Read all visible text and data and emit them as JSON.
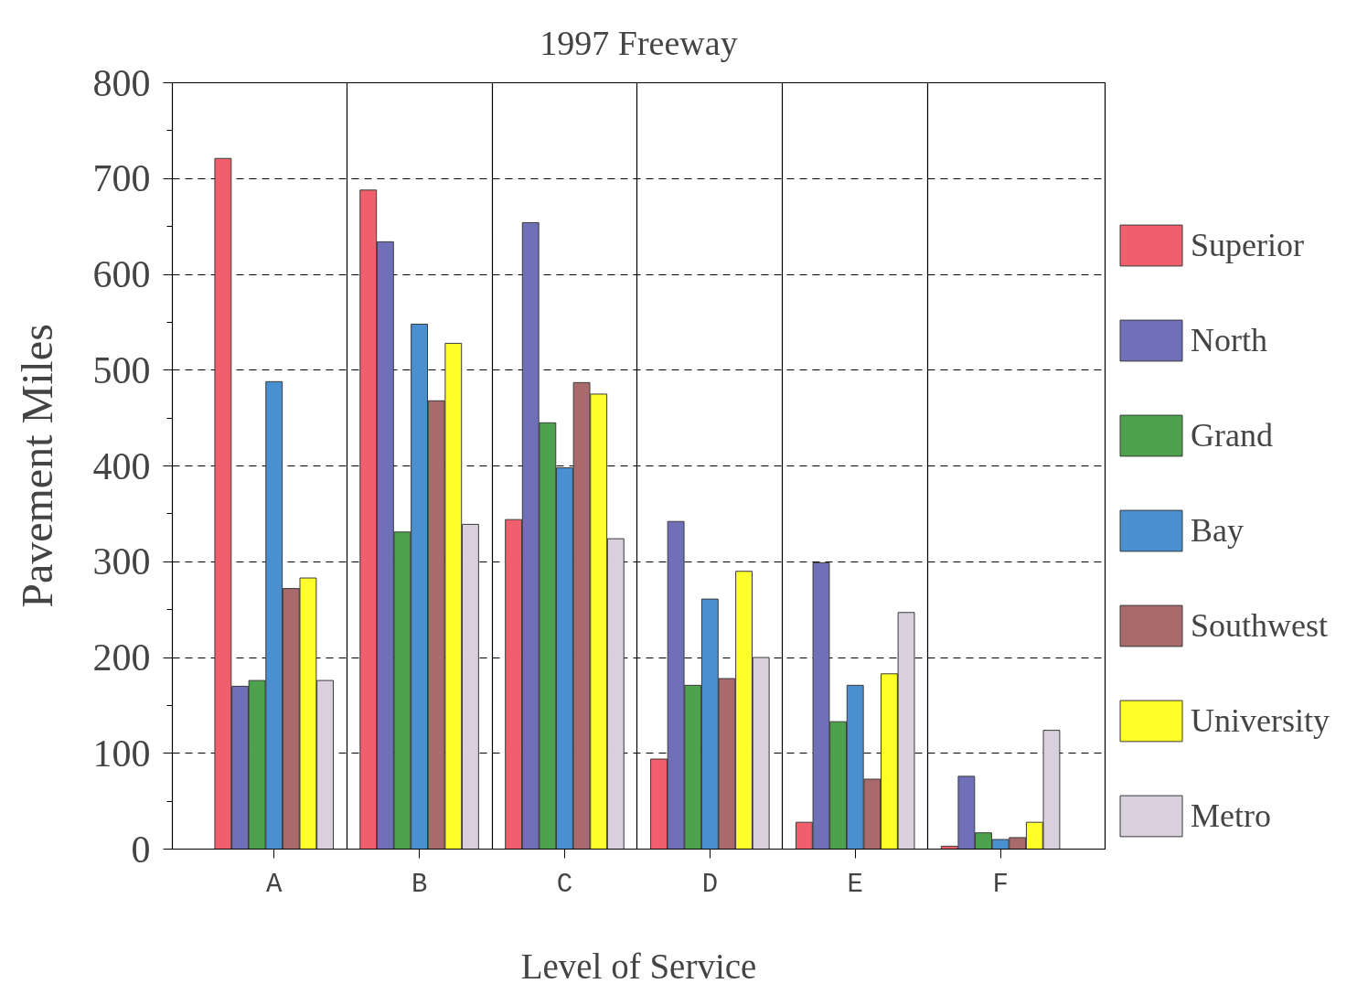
{
  "chart_data": {
    "type": "bar",
    "title": "1997 Freeway",
    "xlabel": "Level of Service",
    "ylabel": "Pavement Miles",
    "categories": [
      "A",
      "B",
      "C",
      "D",
      "E",
      "F"
    ],
    "series": [
      {
        "name": "Superior",
        "color": "#f25f6c",
        "values": [
          721,
          688,
          344,
          94,
          28,
          3
        ]
      },
      {
        "name": "North",
        "color": "#7070b8",
        "values": [
          170,
          634,
          654,
          342,
          299,
          76
        ]
      },
      {
        "name": "Grand",
        "color": "#4ea24e",
        "values": [
          176,
          331,
          445,
          171,
          133,
          17
        ]
      },
      {
        "name": "Bay",
        "color": "#4a90d0",
        "values": [
          488,
          548,
          398,
          261,
          171,
          10
        ]
      },
      {
        "name": "Southwest",
        "color": "#a86a6a",
        "values": [
          272,
          468,
          487,
          178,
          73,
          12
        ]
      },
      {
        "name": "University",
        "color": "#ffff2a",
        "values": [
          283,
          528,
          475,
          290,
          183,
          28
        ]
      },
      {
        "name": "Metro",
        "color": "#d8d0dc",
        "values": [
          176,
          339,
          324,
          200,
          247,
          124
        ]
      }
    ],
    "ylim": [
      0,
      800
    ],
    "yticks": [
      0,
      100,
      200,
      300,
      400,
      500,
      600,
      700,
      800
    ],
    "grid": true,
    "legend": "right"
  }
}
